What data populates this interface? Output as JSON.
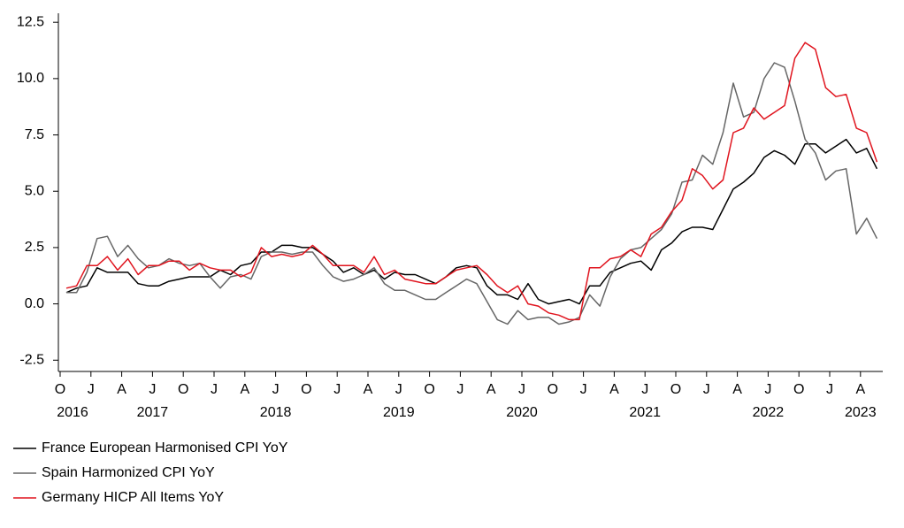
{
  "chart_data": {
    "type": "line",
    "x": [
      "2016-10",
      "2016-11",
      "2016-12",
      "2017-01",
      "2017-02",
      "2017-03",
      "2017-04",
      "2017-05",
      "2017-06",
      "2017-07",
      "2017-08",
      "2017-09",
      "2017-10",
      "2017-11",
      "2017-12",
      "2018-01",
      "2018-02",
      "2018-03",
      "2018-04",
      "2018-05",
      "2018-06",
      "2018-07",
      "2018-08",
      "2018-09",
      "2018-10",
      "2018-11",
      "2018-12",
      "2019-01",
      "2019-02",
      "2019-03",
      "2019-04",
      "2019-05",
      "2019-06",
      "2019-07",
      "2019-08",
      "2019-09",
      "2019-10",
      "2019-11",
      "2019-12",
      "2020-01",
      "2020-02",
      "2020-03",
      "2020-04",
      "2020-05",
      "2020-06",
      "2020-07",
      "2020-08",
      "2020-09",
      "2020-10",
      "2020-11",
      "2020-12",
      "2021-01",
      "2021-02",
      "2021-03",
      "2021-04",
      "2021-05",
      "2021-06",
      "2021-07",
      "2021-08",
      "2021-09",
      "2021-10",
      "2021-11",
      "2021-12",
      "2022-01",
      "2022-02",
      "2022-03",
      "2022-04",
      "2022-05",
      "2022-06",
      "2022-07",
      "2022-08",
      "2022-09",
      "2022-10",
      "2022-11",
      "2022-12",
      "2023-01",
      "2023-02",
      "2023-03",
      "2023-04",
      "2023-05"
    ],
    "series": [
      {
        "name": "France European Harmonised CPI YoY",
        "color": "#000000",
        "values": [
          0.5,
          0.7,
          0.8,
          1.6,
          1.4,
          1.4,
          1.4,
          0.9,
          0.8,
          0.8,
          1.0,
          1.1,
          1.2,
          1.2,
          1.2,
          1.5,
          1.3,
          1.7,
          1.8,
          2.3,
          2.3,
          2.6,
          2.6,
          2.5,
          2.5,
          2.2,
          1.9,
          1.4,
          1.6,
          1.3,
          1.5,
          1.1,
          1.4,
          1.3,
          1.3,
          1.1,
          0.9,
          1.2,
          1.6,
          1.7,
          1.6,
          0.8,
          0.4,
          0.4,
          0.2,
          0.9,
          0.2,
          0.0,
          0.1,
          0.2,
          0.0,
          0.8,
          0.8,
          1.4,
          1.6,
          1.8,
          1.9,
          1.5,
          2.4,
          2.7,
          3.2,
          3.4,
          3.4,
          3.3,
          4.2,
          5.1,
          5.4,
          5.8,
          6.5,
          6.8,
          6.6,
          6.2,
          7.1,
          7.1,
          6.7,
          7.0,
          7.3,
          6.7,
          6.9,
          6.0
        ]
      },
      {
        "name": "Spain Harmonized CPI YoY",
        "color": "#666666",
        "values": [
          0.5,
          0.5,
          1.4,
          2.9,
          3.0,
          2.1,
          2.6,
          2.0,
          1.6,
          1.7,
          2.0,
          1.8,
          1.7,
          1.8,
          1.2,
          0.7,
          1.2,
          1.3,
          1.1,
          2.1,
          2.3,
          2.3,
          2.2,
          2.3,
          2.3,
          1.7,
          1.2,
          1.0,
          1.1,
          1.3,
          1.6,
          0.9,
          0.6,
          0.6,
          0.4,
          0.2,
          0.2,
          0.5,
          0.8,
          1.1,
          0.9,
          0.1,
          -0.7,
          -0.9,
          -0.3,
          -0.7,
          -0.6,
          -0.6,
          -0.9,
          -0.8,
          -0.6,
          0.4,
          -0.1,
          1.2,
          2.0,
          2.4,
          2.5,
          2.9,
          3.3,
          4.0,
          5.4,
          5.5,
          6.6,
          6.2,
          7.6,
          9.8,
          8.3,
          8.5,
          10.0,
          10.7,
          10.5,
          9.0,
          7.3,
          6.7,
          5.5,
          5.9,
          6.0,
          3.1,
          3.8,
          2.9
        ]
      },
      {
        "name": "Germany HICP All Items YoY",
        "color": "#e0141e",
        "values": [
          0.7,
          0.8,
          1.7,
          1.7,
          2.1,
          1.5,
          2.0,
          1.3,
          1.7,
          1.7,
          1.9,
          1.9,
          1.5,
          1.8,
          1.6,
          1.5,
          1.5,
          1.2,
          1.4,
          2.5,
          2.1,
          2.2,
          2.1,
          2.2,
          2.6,
          2.2,
          1.7,
          1.7,
          1.7,
          1.4,
          2.1,
          1.3,
          1.5,
          1.1,
          1.0,
          0.9,
          0.9,
          1.2,
          1.5,
          1.6,
          1.7,
          1.3,
          0.8,
          0.5,
          0.8,
          0.0,
          -0.1,
          -0.4,
          -0.5,
          -0.7,
          -0.7,
          1.6,
          1.6,
          2.0,
          2.1,
          2.4,
          2.1,
          3.1,
          3.4,
          4.1,
          4.6,
          6.0,
          5.7,
          5.1,
          5.5,
          7.6,
          7.8,
          8.7,
          8.2,
          8.5,
          8.8,
          10.9,
          11.6,
          11.3,
          9.6,
          9.2,
          9.3,
          7.8,
          7.6,
          6.3
        ]
      }
    ],
    "ylim": [
      -3,
      12.9
    ],
    "yticks": [
      -2.5,
      {
        "value": 0,
        "label": "0.0"
      },
      2.5,
      {
        "value": 5,
        "label": "5.0"
      },
      7.5,
      {
        "value": 10,
        "label": "10.0"
      },
      12.5
    ],
    "xticks": [
      {
        "value": "2016-10",
        "label": "O"
      },
      {
        "value": "2017-01",
        "label": "J"
      },
      {
        "value": "2017-04",
        "label": "A"
      },
      {
        "value": "2017-07",
        "label": "J"
      },
      {
        "value": "2017-10",
        "label": "O"
      },
      {
        "value": "2018-01",
        "label": "J"
      },
      {
        "value": "2018-04",
        "label": "A"
      },
      {
        "value": "2018-07",
        "label": "J"
      },
      {
        "value": "2018-10",
        "label": "O"
      },
      {
        "value": "2019-01",
        "label": "J"
      },
      {
        "value": "2019-04",
        "label": "A"
      },
      {
        "value": "2019-07",
        "label": "J"
      },
      {
        "value": "2019-10",
        "label": "O"
      },
      {
        "value": "2020-01",
        "label": "J"
      },
      {
        "value": "2020-04",
        "label": "A"
      },
      {
        "value": "2020-07",
        "label": "J"
      },
      {
        "value": "2020-10",
        "label": "O"
      },
      {
        "value": "2021-01",
        "label": "J"
      },
      {
        "value": "2021-04",
        "label": "A"
      },
      {
        "value": "2021-07",
        "label": "J"
      },
      {
        "value": "2021-10",
        "label": "O"
      },
      {
        "value": "2022-01",
        "label": "J"
      },
      {
        "value": "2022-04",
        "label": "A"
      },
      {
        "value": "2022-07",
        "label": "J"
      },
      {
        "value": "2022-10",
        "label": "O"
      },
      {
        "value": "2023-01",
        "label": "J"
      },
      {
        "value": "2023-04",
        "label": "A"
      }
    ],
    "xtick_years": [
      {
        "value": "2016-10",
        "label": "2016"
      },
      {
        "value": "2017-07",
        "label": "2017"
      },
      {
        "value": "2018-07",
        "label": "2018"
      },
      {
        "value": "2019-07",
        "label": "2019"
      },
      {
        "value": "2020-07",
        "label": "2020"
      },
      {
        "value": "2021-07",
        "label": "2021"
      },
      {
        "value": "2022-07",
        "label": "2022"
      },
      {
        "value": "2023-04",
        "label": "2023"
      }
    ]
  }
}
